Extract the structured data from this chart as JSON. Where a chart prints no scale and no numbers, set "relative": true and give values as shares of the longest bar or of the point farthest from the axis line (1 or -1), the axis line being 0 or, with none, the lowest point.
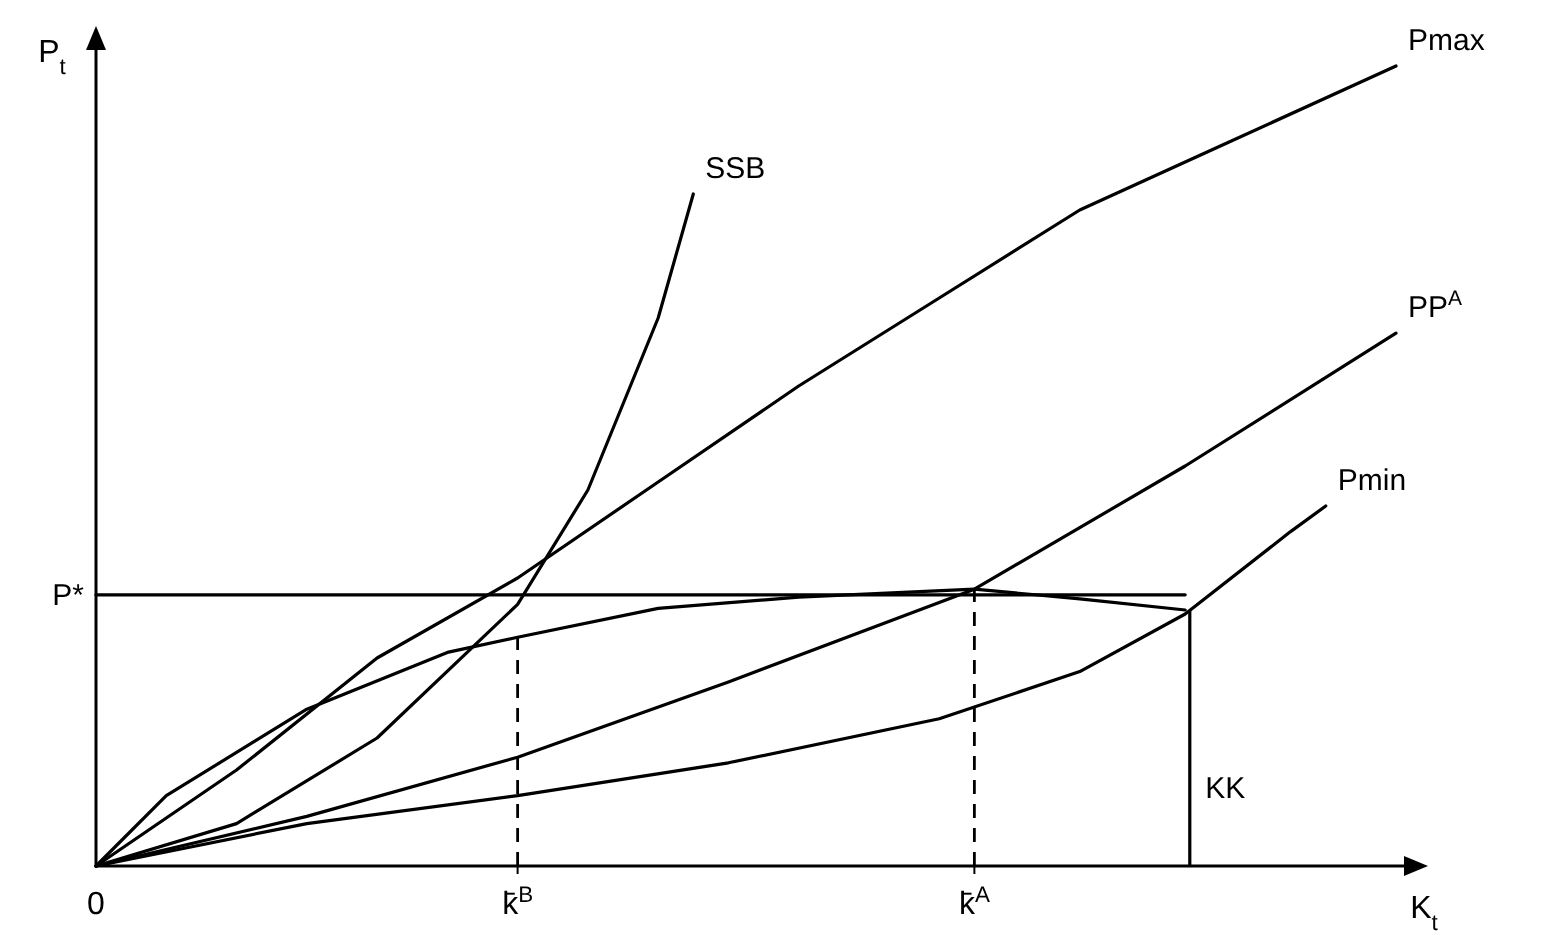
{
  "chart_data": {
    "type": "line",
    "relative": true,
    "xlabel": "K$_{t}$",
    "ylabel": "P$_{t}$",
    "categories": [
      "0",
      null,
      null,
      null,
      null,
      null,
      null,
      null,
      null,
      null,
      null,
      null,
      "k̄$^{B}$",
      null,
      null,
      null,
      null,
      null,
      null,
      null,
      null,
      null,
      null,
      null,
      null,
      "k̄$^{A}$",
      null,
      null,
      null,
      null,
      null,
      null,
      null,
      null,
      null,
      null,
      null,
      null
    ],
    "marker": "none",
    "line_style": "solid",
    "legend": false,
    "grid": false,
    "series": [
      {
        "name": "Pmax",
        "color": "#000000",
        "values": [
          0,
          null,
          null,
          null,
          0.12,
          null,
          null,
          null,
          0.26,
          null,
          null,
          null,
          0.36,
          null,
          null,
          null,
          0.48,
          null,
          null,
          null,
          0.6,
          null,
          null,
          null,
          0.71,
          null,
          null,
          null,
          0.82,
          null,
          null,
          null,
          0.9,
          null,
          null,
          null,
          0.98,
          1
        ]
      },
      {
        "name": "SSB",
        "color": "#000000",
        "values": [
          0,
          null,
          null,
          null,
          0.053,
          null,
          null,
          null,
          0.16,
          null,
          null,
          null,
          0.327,
          null,
          0.47,
          null,
          0.685,
          0.84,
          null,
          null,
          null,
          null,
          null,
          null,
          null,
          null,
          null,
          null,
          null,
          null,
          null,
          null,
          null,
          null,
          null,
          null,
          null,
          null
        ]
      },
      {
        "name": "PP$^{A}$",
        "color": "#000000",
        "values": [
          0,
          null,
          null,
          null,
          null,
          null,
          0.062,
          null,
          null,
          null,
          null,
          null,
          0.136,
          null,
          null,
          null,
          null,
          null,
          0.23,
          null,
          null,
          null,
          null,
          null,
          null,
          0.346,
          null,
          null,
          null,
          null,
          null,
          0.5,
          null,
          null,
          null,
          null,
          null,
          0.666
        ]
      },
      {
        "name": "Pmin",
        "color": "#000000",
        "values": [
          0,
          null,
          null,
          null,
          null,
          null,
          0.053,
          null,
          null,
          null,
          null,
          null,
          0.088,
          null,
          null,
          null,
          null,
          null,
          0.129,
          null,
          null,
          null,
          null,
          null,
          0.184,
          null,
          null,
          null,
          0.243,
          null,
          null,
          0.315,
          null,
          null,
          0.418,
          0.45,
          null,
          null
        ]
      },
      {
        "color": "#000000",
        "values": [
          0,
          null,
          0.088,
          null,
          null,
          null,
          0.196,
          null,
          null,
          null,
          0.267,
          null,
          0.286,
          null,
          null,
          null,
          0.322,
          null,
          null,
          null,
          0.336,
          null,
          null,
          null,
          null,
          0.346,
          null,
          null,
          0.334,
          null,
          null,
          0.32,
          null,
          null,
          null,
          null,
          null,
          null
        ]
      },
      {
        "color": "#000000",
        "values": [
          0.339,
          null,
          null,
          null,
          null,
          null,
          null,
          null,
          null,
          null,
          null,
          null,
          null,
          null,
          null,
          null,
          null,
          null,
          null,
          null,
          null,
          null,
          null,
          null,
          null,
          null,
          null,
          null,
          null,
          null,
          null,
          0.339,
          null,
          null,
          null,
          null,
          null,
          null
        ]
      },
      {
        "type": "bar",
        "name": "KK",
        "color": "#000000",
        "values": [
          null,
          null,
          null,
          null,
          null,
          null,
          null,
          null,
          null,
          null,
          null,
          null,
          null,
          null,
          null,
          null,
          null,
          null,
          null,
          null,
          null,
          null,
          null,
          null,
          null,
          null,
          null,
          null,
          null,
          null,
          null,
          0.32,
          null,
          null,
          null,
          null,
          null,
          null
        ]
      }
    ],
    "ref_lines": [
      {
        "axis": "x",
        "value": "k̄$^{B}$",
        "line_style": "dashed",
        "color": "#000000"
      },
      {
        "axis": "x",
        "value": "k̄$^{A}$",
        "line_style": "dashed",
        "color": "#000000"
      }
    ],
    "annotations": [
      {
        "text": "P*",
        "x": "0",
        "y": 0.339
      }
    ]
  }
}
